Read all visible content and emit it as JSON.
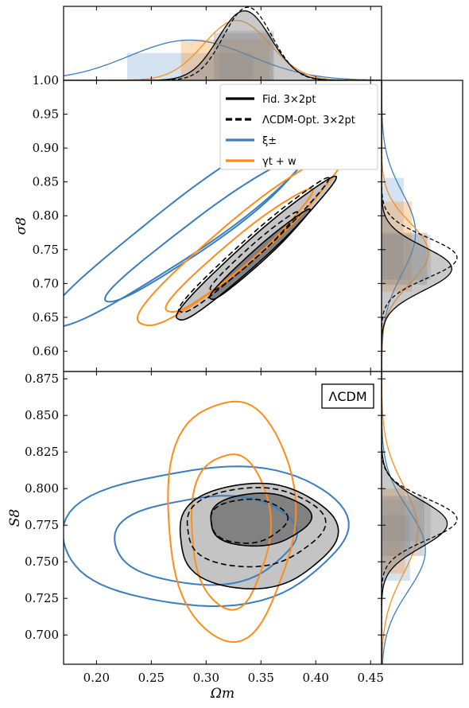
{
  "chart_data": {
    "type": "triangle-contour",
    "colors": {
      "fid": "#000000",
      "opt": "#000000",
      "xi": "#3a7ebf",
      "gw": "#ff8c1a",
      "fill_dark": "#555555",
      "fill_light": "#b0b0b0"
    },
    "x_axis": {
      "label": "Ωm",
      "range": [
        0.17,
        0.46
      ],
      "ticks": [
        "0.20",
        "0.25",
        "0.30",
        "0.35",
        "0.40",
        "0.45"
      ]
    },
    "sigma8_axis": {
      "label": "σ8",
      "range": [
        0.57,
        1.0
      ],
      "ticks": [
        "0.60",
        "0.65",
        "0.70",
        "0.75",
        "0.80",
        "0.85",
        "0.90",
        "0.95",
        "1.00"
      ]
    },
    "S8_axis": {
      "label": "S8",
      "range": [
        0.68,
        0.88
      ],
      "ticks": [
        "0.700",
        "0.725",
        "0.750",
        "0.775",
        "0.800",
        "0.825",
        "0.850",
        "0.875"
      ]
    },
    "legend": [
      {
        "key": "fid",
        "label": "Fid. 3×2pt",
        "style": "solid"
      },
      {
        "key": "opt",
        "label": "ΛCDM-Opt. 3×2pt",
        "style": "dashed"
      },
      {
        "key": "xi",
        "label": "ξ±",
        "style": "solid"
      },
      {
        "key": "gw",
        "label": "γt + w",
        "style": "solid"
      }
    ],
    "badge": "ΛCDM",
    "omega_marginals": [
      {
        "key": "xi",
        "mean": 0.285,
        "sd": 0.055,
        "amp": 0.55,
        "band68": [
          0.228,
          0.343
        ]
      },
      {
        "key": "gw",
        "mean": 0.328,
        "sd": 0.03,
        "amp": 0.82,
        "band68": [
          0.277,
          0.358
        ]
      },
      {
        "key": "fid",
        "mean": 0.335,
        "sd": 0.024,
        "amp": 0.95,
        "band68": [
          0.307,
          0.361
        ]
      },
      {
        "key": "opt",
        "mean": 0.338,
        "sd": 0.022,
        "amp": 1.0,
        "band68": [
          0.312,
          0.362
        ]
      }
    ],
    "sigma8_marginals": [
      {
        "key": "xi",
        "mean": 0.775,
        "sd": 0.06,
        "amp": 0.45,
        "band68": [
          0.706,
          0.856
        ]
      },
      {
        "key": "gw",
        "mean": 0.745,
        "sd": 0.045,
        "amp": 0.62,
        "band68": [
          0.688,
          0.821
        ]
      },
      {
        "key": "fid",
        "mean": 0.722,
        "sd": 0.032,
        "amp": 0.93,
        "band68": [
          0.698,
          0.775
        ]
      },
      {
        "key": "opt",
        "mean": 0.738,
        "sd": 0.03,
        "amp": 1.0,
        "band68": [
          0.705,
          0.772
        ]
      }
    ],
    "S8_marginals": [
      {
        "key": "xi",
        "mean": 0.758,
        "sd": 0.028,
        "amp": 0.58,
        "band68": [
          0.737,
          0.782
        ]
      },
      {
        "key": "gw",
        "mean": 0.772,
        "sd": 0.03,
        "amp": 0.48,
        "band68": [
          0.742,
          0.8
        ]
      },
      {
        "key": "fid",
        "mean": 0.776,
        "sd": 0.016,
        "amp": 0.87,
        "band68": [
          0.754,
          0.795
        ]
      },
      {
        "key": "opt",
        "mean": 0.779,
        "sd": 0.014,
        "amp": 1.0,
        "band68": [
          0.764,
          0.792
        ]
      }
    ],
    "sigma8_contours": [
      {
        "key": "xi",
        "level": 95,
        "cx": 0.286,
        "cy": 0.79,
        "rx": 0.157,
        "ry": 0.04,
        "deg": -36
      },
      {
        "key": "xi",
        "level": 68,
        "cx": 0.3,
        "cy": 0.78,
        "rx": 0.112,
        "ry": 0.022,
        "deg": -36
      },
      {
        "key": "gw",
        "level": 95,
        "cx": 0.331,
        "cy": 0.762,
        "rx": 0.122,
        "ry": 0.032,
        "deg": -40
      },
      {
        "key": "gw",
        "level": 68,
        "cx": 0.329,
        "cy": 0.745,
        "rx": 0.086,
        "ry": 0.02,
        "deg": -40
      },
      {
        "key": "fid",
        "level": 95,
        "cx": 0.343,
        "cy": 0.747,
        "rx": 0.097,
        "ry": 0.017,
        "deg": -42
      },
      {
        "key": "fid",
        "level": 68,
        "cx": 0.347,
        "cy": 0.74,
        "rx": 0.061,
        "ry": 0.01,
        "deg": -42
      },
      {
        "key": "opt",
        "level": 95,
        "cx": 0.341,
        "cy": 0.752,
        "rx": 0.091,
        "ry": 0.015,
        "deg": -42
      },
      {
        "key": "opt",
        "level": 68,
        "cx": 0.342,
        "cy": 0.745,
        "rx": 0.053,
        "ry": 0.009,
        "deg": -42
      }
    ],
    "S8_contours": [
      {
        "key": "xi",
        "level": 95,
        "cx": 0.3,
        "cy": 0.768,
        "rx": 0.13,
        "ry": 0.047,
        "deg": -3
      },
      {
        "key": "xi",
        "level": 68,
        "cx": 0.3,
        "cy": 0.765,
        "rx": 0.083,
        "ry": 0.03,
        "deg": -3
      },
      {
        "key": "gw",
        "level": 95,
        "cx": 0.322,
        "cy": 0.78,
        "rx": 0.058,
        "ry": 0.082,
        "deg": 0
      },
      {
        "key": "gw",
        "level": 68,
        "cx": 0.322,
        "cy": 0.772,
        "rx": 0.036,
        "ry": 0.053,
        "deg": 0
      },
      {
        "key": "fid",
        "level": 95,
        "cx": 0.345,
        "cy": 0.768,
        "rx": 0.072,
        "ry": 0.036,
        "deg": -3
      },
      {
        "key": "fid",
        "level": 68,
        "cx": 0.348,
        "cy": 0.779,
        "rx": 0.046,
        "ry": 0.018,
        "deg": -3
      },
      {
        "key": "opt",
        "level": 95,
        "cx": 0.343,
        "cy": 0.774,
        "rx": 0.063,
        "ry": 0.027,
        "deg": -3
      },
      {
        "key": "opt",
        "level": 68,
        "cx": 0.338,
        "cy": 0.778,
        "rx": 0.035,
        "ry": 0.015,
        "deg": -3
      }
    ]
  }
}
